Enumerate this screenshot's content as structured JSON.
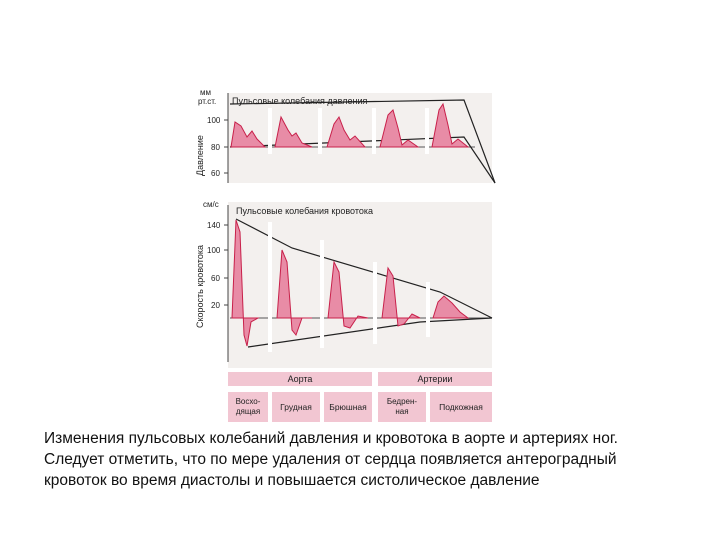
{
  "pressure_panel": {
    "unit_line1": "мм",
    "unit_line2": "рт.ст.",
    "title": "Пульсовые колебания давления",
    "axis_label": "Давление",
    "ticks": [
      "100",
      "80",
      "60"
    ]
  },
  "flow_panel": {
    "unit": "см/с",
    "title": "Пульсовые колебания кровотока",
    "axis_label": "Скорость кровотока",
    "ticks": [
      "140",
      "100",
      "60",
      "20"
    ]
  },
  "segments": {
    "aorta": {
      "header": "Аорта",
      "parts": [
        {
          "line1": "Восхо-",
          "line2": "дящая"
        },
        {
          "line1": "Грудная",
          "line2": ""
        },
        {
          "line1": "Брюшная",
          "line2": ""
        }
      ]
    },
    "arteries": {
      "header": "Артерии",
      "parts": [
        {
          "line1": "Бедрен-",
          "line2": "ная"
        },
        {
          "line1": "Подкожная",
          "line2": ""
        }
      ]
    }
  },
  "caption": {
    "line1": "Изменения пульсовых колебаний давления и кровотока в аорте и артериях ног.",
    "line2": "Следует отметить, что по мере удаления от сердца появляется антероградный",
    "line3": "кровоток во время диастолы и повышается систолическое давление"
  },
  "colors": {
    "wave_fill": "#e88ca6",
    "wave_stroke": "#c8204a",
    "band_fill": "#f2c6d2",
    "panel_bg": "#f3f0ee"
  }
}
